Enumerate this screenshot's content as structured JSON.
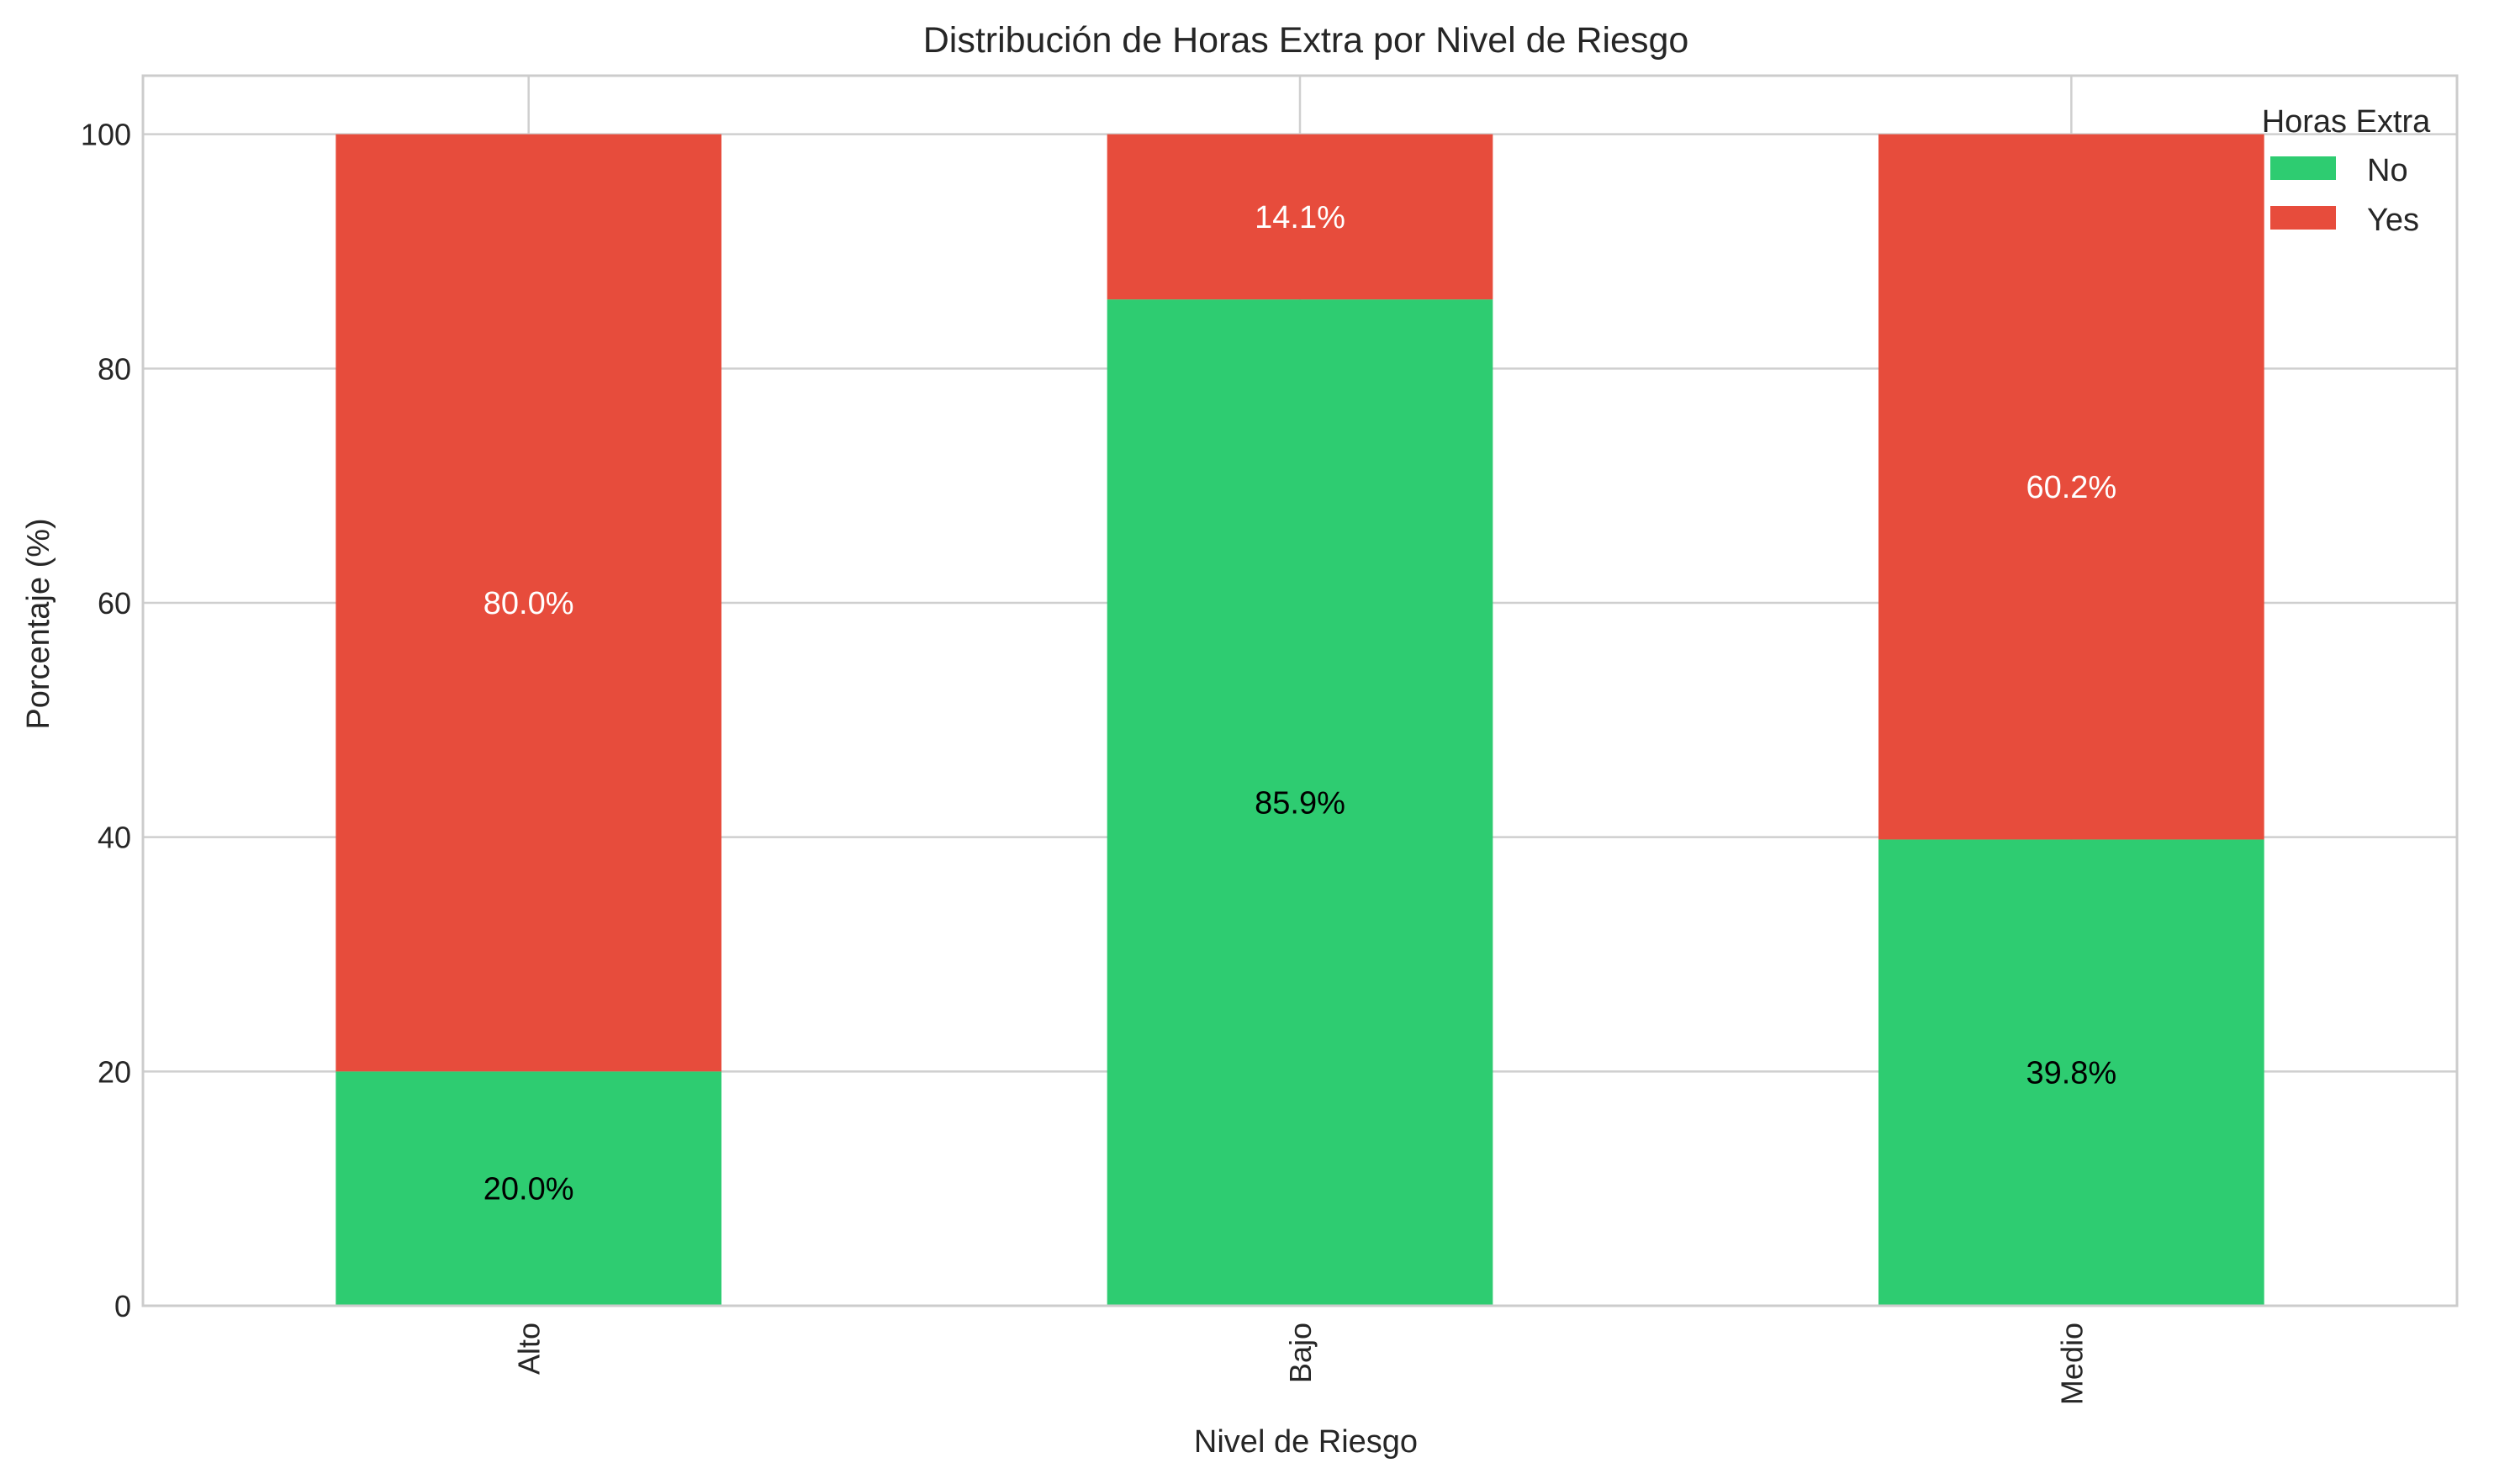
{
  "chart_data": {
    "type": "bar",
    "stacked": true,
    "title": "Distribución de Horas Extra por Nivel de Riesgo",
    "xlabel": "Nivel de Riesgo",
    "ylabel": "Porcentaje (%)",
    "categories": [
      "Alto",
      "Bajo",
      "Medio"
    ],
    "ylim": [
      0,
      105
    ],
    "yticks": [
      0,
      20,
      40,
      60,
      80,
      100
    ],
    "grid": true,
    "legend": {
      "title": "Horas Extra",
      "placement": "top-right"
    },
    "series": [
      {
        "name": "No",
        "color": "#2ecc71",
        "label_color": "#000000",
        "values": [
          20.0,
          85.9,
          39.8
        ],
        "labels": [
          "20.0%",
          "85.9%",
          "39.8%"
        ]
      },
      {
        "name": "Yes",
        "color": "#e74c3c",
        "label_color": "#ffffff",
        "values": [
          80.0,
          14.1,
          60.2
        ],
        "labels": [
          "80.0%",
          "",
          "60.2%"
        ]
      }
    ]
  }
}
